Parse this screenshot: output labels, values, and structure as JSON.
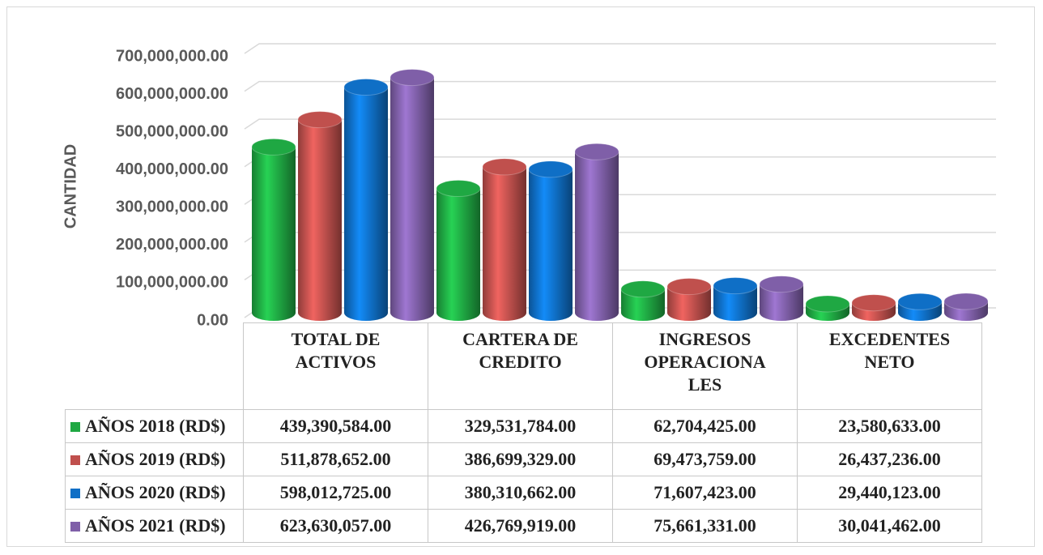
{
  "chart_data": {
    "type": "bar3d",
    "y_label": "CANTIDAD",
    "categories": [
      "TOTAL DE ACTIVOS",
      "CARTERA DE CREDITO",
      "INGRESOS OPERACIONALES",
      "EXCEDENTES NETO"
    ],
    "series": [
      {
        "name": "AÑOS 2018 (RD$)",
        "color": "#1fa843",
        "values": [
          439390584,
          329531784,
          62704425,
          23580633
        ],
        "value_labels": [
          "439,390,584.00",
          "329,531,784.00",
          "62,704,425.00",
          "23,580,633.00"
        ]
      },
      {
        "name": "AÑOS 2019 (RD$)",
        "color": "#c0504d",
        "values": [
          511878652,
          386699329,
          69473759,
          26437236
        ],
        "value_labels": [
          "511,878,652.00",
          "386,699,329.00",
          "69,473,759.00",
          "26,437,236.00"
        ]
      },
      {
        "name": "AÑOS 2020 (RD$)",
        "color": "#0f6fc6",
        "values": [
          598012725,
          380310662,
          71607423,
          29440123
        ],
        "value_labels": [
          "598,012,725.00",
          "380,310,662.00",
          "71,607,423.00",
          "29,440,123.00"
        ]
      },
      {
        "name": "AÑOS 2021 (RD$)",
        "color": "#7f5fa8",
        "values": [
          623630057,
          426769919,
          75661331,
          30041462
        ],
        "value_labels": [
          "623,630,057.00",
          "426,769,919.00",
          "75,661,331.00",
          "30,041,462.00"
        ]
      }
    ],
    "ylim": [
      0,
      700000000
    ],
    "yticks": [
      {
        "value": 0,
        "label": "0.00"
      },
      {
        "value": 100000000,
        "label": "100,000,000.00"
      },
      {
        "value": 200000000,
        "label": "200,000,000.00"
      },
      {
        "value": 300000000,
        "label": "300,000,000.00"
      },
      {
        "value": 400000000,
        "label": "400,000,000.00"
      },
      {
        "value": 500000000,
        "label": "500,000,000.00"
      },
      {
        "value": 600000000,
        "label": "600,000,000.00"
      },
      {
        "value": 700000000,
        "label": "700,000,000.00"
      }
    ],
    "grid": true
  }
}
